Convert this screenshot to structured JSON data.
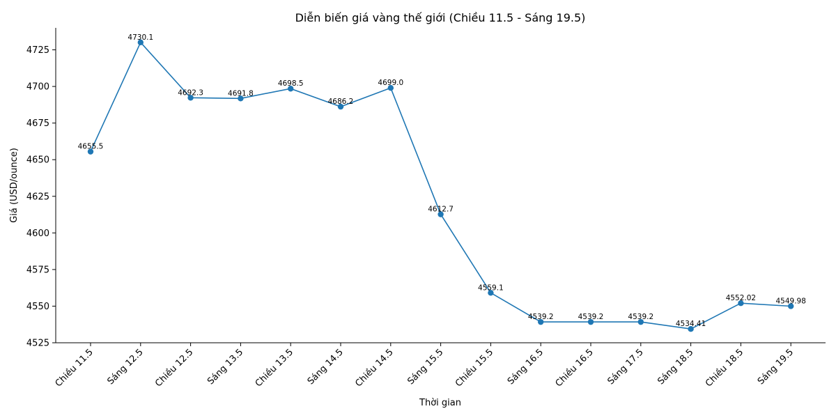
{
  "chart_data": {
    "type": "line",
    "title": "Diễn biến giá vàng thế giới (Chiều 11.5 - Sáng 19.5)",
    "xlabel": "Thời gian",
    "ylabel": "Giá (USD/ounce)",
    "categories": [
      "Chiều 11.5",
      "Sáng 12.5",
      "Chiều 12.5",
      "Sáng 13.5",
      "Chiều 13.5",
      "Sáng 14.5",
      "Chiều 14.5",
      "Sáng 15.5",
      "Chiều 15.5",
      "Sáng 16.5",
      "Chiều 16.5",
      "Sáng 17.5",
      "Sáng 18.5",
      "Chiều 18.5",
      "Sáng 19.5"
    ],
    "series": [
      {
        "values": [
          4655.5,
          4730.1,
          4692.3,
          4691.8,
          4698.5,
          4686.2,
          4699.0,
          4612.7,
          4559.1,
          4539.2,
          4539.2,
          4539.2,
          4534.41,
          4552.02,
          4549.98
        ],
        "labels": [
          "4655.5",
          "4730.1",
          "4692.3",
          "4691.8",
          "4698.5",
          "4686.2",
          "4699.0",
          "4612.7",
          "4559.1",
          "4539.2",
          "4539.2",
          "4539.2",
          "4534.41",
          "4552.02",
          "4549.98"
        ],
        "color": "#1f77b4"
      }
    ],
    "yticks": [
      4525,
      4550,
      4575,
      4600,
      4625,
      4650,
      4675,
      4700,
      4725
    ],
    "ytick_labels": [
      "4525",
      "4550",
      "4575",
      "4600",
      "4625",
      "4650",
      "4675",
      "4700",
      "4725"
    ],
    "ylim": [
      4525,
      4740
    ],
    "grid": false,
    "legend": "none"
  }
}
